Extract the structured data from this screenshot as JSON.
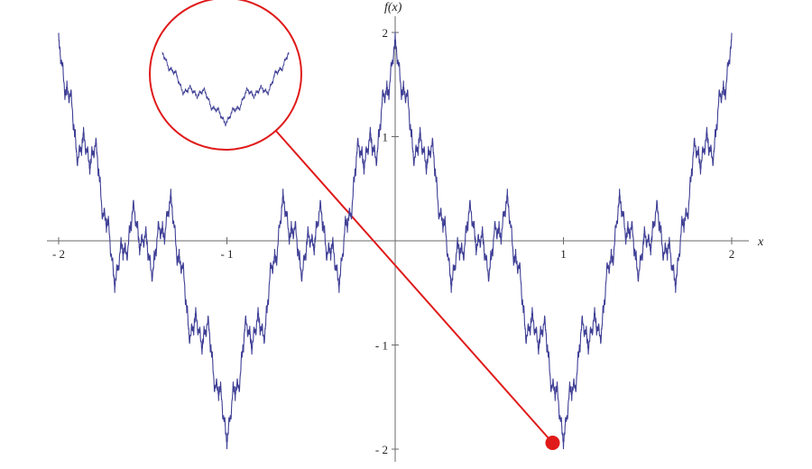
{
  "chart_data": {
    "type": "line",
    "xlabel": "x",
    "ylabel": "f(x)",
    "xlim": [
      -2,
      2
    ],
    "ylim": [
      -2,
      2
    ],
    "x_ticks": [
      {
        "value": -2,
        "label": "- 2"
      },
      {
        "value": -1,
        "label": "- 1"
      },
      {
        "value": 1,
        "label": "1"
      },
      {
        "value": 2,
        "label": "2"
      }
    ],
    "y_ticks": [
      {
        "value": 2,
        "label": "2"
      },
      {
        "value": 1,
        "label": "1"
      },
      {
        "value": -1,
        "label": "- 1"
      },
      {
        "value": -2,
        "label": "- 2"
      }
    ],
    "series": [
      {
        "function": "Weierstrass-type fractal: sum of a^n cos(b^n pi x)",
        "color": "#3f3f96",
        "x": [
          -2,
          -1.5,
          -1,
          -0.5,
          0,
          0.5,
          1,
          1.5,
          2
        ],
        "y": [
          2,
          0,
          -2,
          0,
          2,
          0,
          -2,
          0,
          2
        ]
      }
    ],
    "annotation": {
      "type": "zoom-inset",
      "highlighted_point": {
        "x": 1,
        "y": -2
      },
      "circle_color": "#e01a1a"
    },
    "grid": false
  }
}
